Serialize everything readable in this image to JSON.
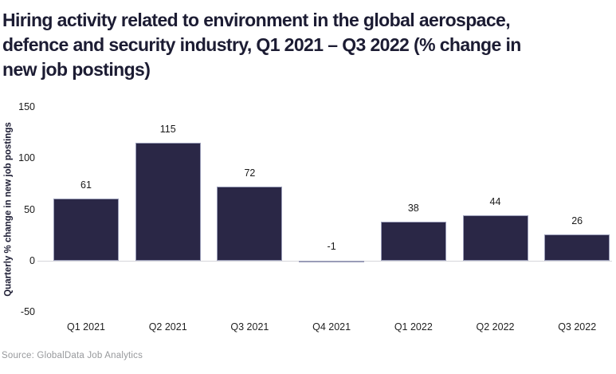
{
  "chart_data": {
    "type": "bar",
    "title": "Hiring activity related to environment in the global aerospace, defence and security industry, Q1 2021 – Q3 2022 (% change in new job postings)",
    "categories": [
      "Q1 2021",
      "Q2 2021",
      "Q3 2021",
      "Q4 2021",
      "Q1 2022",
      "Q2 2022",
      "Q3 2022"
    ],
    "values": [
      61,
      115,
      72,
      -1,
      38,
      44,
      26
    ],
    "xlabel": "",
    "ylabel": "Quarterly % change in new job postings",
    "yticks": [
      150,
      100,
      50,
      0,
      -50
    ],
    "ylim": [
      -50,
      150
    ],
    "grid": false,
    "legend": "none",
    "bar_color": "#2a2746",
    "bar_border_color": "#9a9db8",
    "zero_line_color": "#d6d6db",
    "title_color": "#1c1c33",
    "source": "Source: GlobalData Job Analytics"
  }
}
